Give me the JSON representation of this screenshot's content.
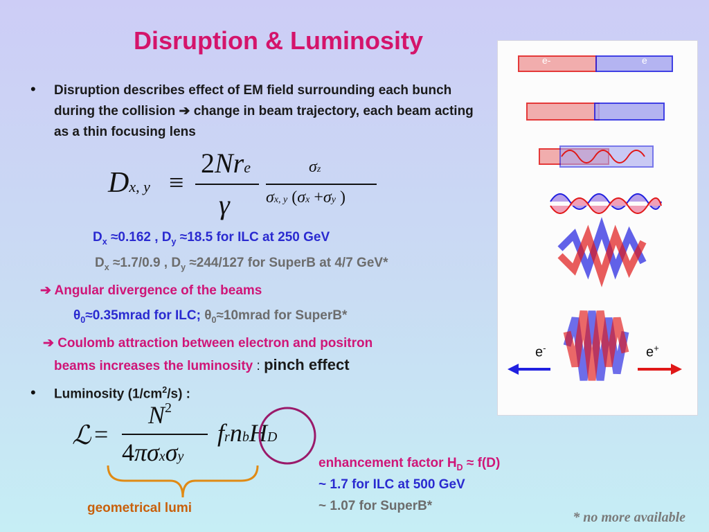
{
  "slide": {
    "title": "Disruption & Luminosity",
    "bullet1_text": "Disruption describes effect of EM field surrounding each bunch during the collision",
    "bullet1_rest": "change in beam trajectory, each beam acting as a thin focusing lens",
    "dx_ilc": "D",
    "dx_ilc_sub": "x",
    "dx_ilc_val": " ≈0.162 , D",
    "dy_ilc_sub": "y",
    "dy_ilc_val": " ≈18.5 for ILC at 250 GeV",
    "superb_d": "D",
    "superb_dx_sub": "x",
    "superb_dx_val": " ≈1.7/0.9 , D",
    "superb_dy_sub": "y",
    "superb_dy_val": " ≈244/127 for  SuperB at 4/7 GeV*",
    "angular_text": "Angular divergence of the beams",
    "theta_ilc": "θ",
    "theta_sub": "0",
    "theta_ilc_val": "≈0.35mrad for ILC;",
    "theta_superb": "θ",
    "theta_superb_sub": "0",
    "theta_superb_val": "≈10mrad for SuperB*",
    "coulomb_line1": "Coulomb attraction between electron and positron",
    "coulomb_line2": "beams increases the luminosity",
    "coulomb_colon": " : ",
    "pinch": "pinch effect",
    "lumi_label": "Luminosity  (1/cm",
    "lumi_sup": "2",
    "lumi_end": "/s) :",
    "enh_label": "enhancement factor H",
    "enh_sub": "D",
    "enh_end": " ≈ f(D)",
    "ilc_enh": "~ 1.7 for ILC at 500 GeV",
    "superb_enh": "~ 1.07 for  SuperB*",
    "geo_lumi": "geometrical lumi",
    "note": "* no more available"
  },
  "figure": {
    "electron_label": "e",
    "electron_sup": "-",
    "positron_label": "e",
    "positron_sup": "+",
    "top_e_left": "e-",
    "top_e_right": "e",
    "colors": {
      "electron": "#2020e0",
      "positron": "#e01818"
    }
  },
  "colors": {
    "title": "#d4146b",
    "magenta": "#cf1577",
    "blue": "#2a2ad0",
    "gray": "#6c6c6c",
    "orange": "#c8600c",
    "circle": "#9a1a6a"
  }
}
